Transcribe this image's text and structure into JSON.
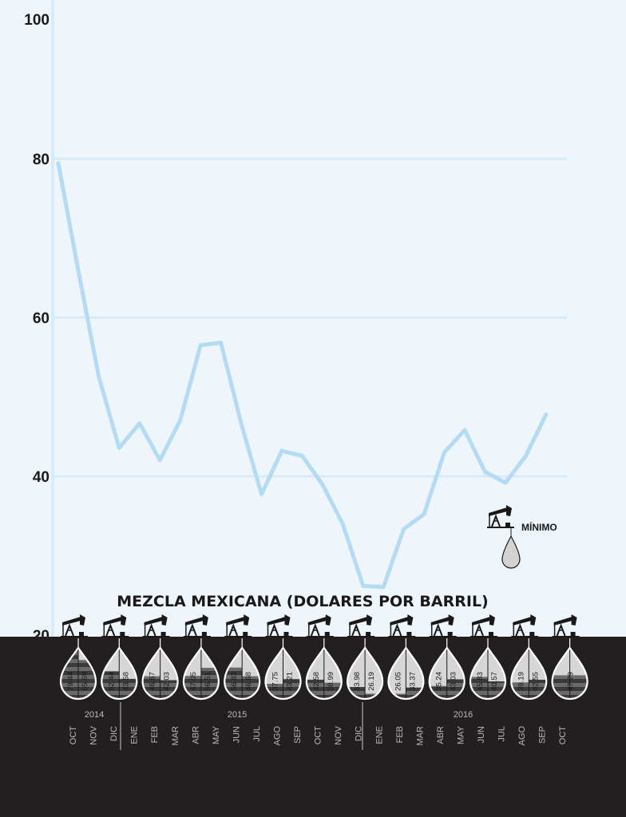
{
  "chart_data": {
    "type": "line",
    "title": "MEZCLA MEXICANA (DOLARES POR BARRIL)",
    "ylim": [
      20,
      100
    ],
    "yticks": [
      "20",
      "40",
      "60",
      "80",
      "100"
    ],
    "grid": true,
    "months": [
      "OCT",
      "NOV",
      "DIC",
      "ENE",
      "FEB",
      "MAR",
      "ABR",
      "MAY",
      "JUN",
      "JUL",
      "AGO",
      "SEP",
      "OCT",
      "NOV",
      "DIC",
      "ENE",
      "FEB",
      "MAR",
      "ABR",
      "MAY",
      "JUN",
      "JUL",
      "AGO",
      "SEP",
      "OCT"
    ],
    "years": [
      "2014",
      "2015",
      "2016"
    ],
    "series": [
      {
        "values": [
          79.44,
          65.69,
          52.44,
          43.58,
          46.67,
          42.03,
          47.05,
          56.51,
          56.83,
          46.68,
          37.75,
          43.21,
          42.58,
          38.99,
          33.98,
          26.19,
          26.05,
          33.37,
          35.24,
          43.03,
          45.83,
          40.57,
          39.19,
          42.55,
          47.79
        ]
      }
    ],
    "drop_labels": [
      "79.44",
      "65.69",
      "52.44",
      "43.58",
      "46.67",
      "42.03",
      "47.05",
      "56.51",
      "56.83",
      "46.68",
      "37.75",
      "43.21",
      "42.58",
      "38.99",
      "33.98",
      "26.19",
      "26.05",
      "33.37",
      "35.24",
      "43.03",
      "45.83",
      "40.57",
      "39.19",
      "42.55",
      "47.79"
    ],
    "legend": {
      "label": "MÍNIMO"
    }
  },
  "colors": {
    "background": "#eef5fb",
    "line": "#b3dcf4",
    "grid": "#d8ebf9",
    "band": "#231f20",
    "ink": "#1a1818",
    "month_text": "#b9b9b9"
  }
}
